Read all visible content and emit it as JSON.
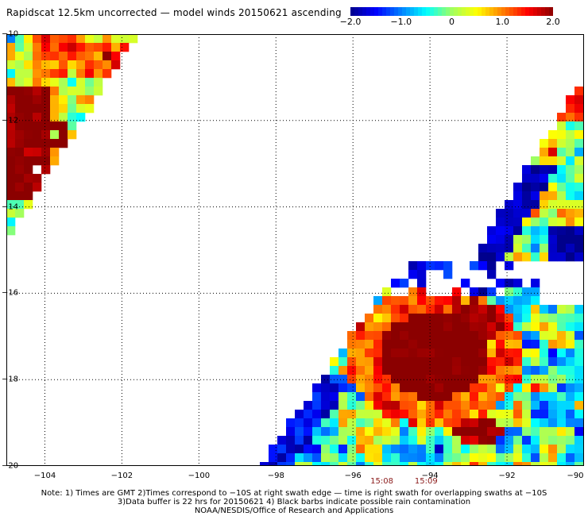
{
  "title": "Rapidscat 12.5km uncorrected — model winds 20150621 ascending",
  "colorbar": {
    "min": -2.0,
    "max": 2.0,
    "labels": [
      "−2.0",
      "−1.0",
      "0",
      "1.0",
      "2.0"
    ],
    "label_values": [
      -2.0,
      -1.0,
      0,
      1.0,
      2.0
    ],
    "colors": [
      "#00008b",
      "#0000ff",
      "#0080ff",
      "#00ffff",
      "#a0ff60",
      "#ffff00",
      "#ff8000",
      "#ff0000",
      "#8b0000"
    ]
  },
  "map": {
    "lon_range": [
      -105,
      -90
    ],
    "lat_range": [
      -20,
      -10
    ],
    "lon_ticks": [
      -104,
      -102,
      -100,
      -98,
      -96,
      -94,
      -92,
      -90
    ],
    "lon_tick_labels": [
      "−104",
      "−102",
      "−100",
      "−98",
      "−96",
      "−94",
      "−92",
      "−90"
    ],
    "lat_ticks": [
      -10,
      -12,
      -14,
      -16,
      -18,
      -20
    ],
    "lat_tick_labels": [
      "−10",
      "−12",
      "−14",
      "−16",
      "−18",
      "−20"
    ],
    "grid": "dotted",
    "time_labels": [
      {
        "text": "15:08",
        "lon": -95.25
      },
      {
        "text": "15:09",
        "lon": -94.1
      }
    ]
  },
  "notes": [
    "Note: 1) Times are GMT 2)Times correspond to −10S at right swath edge — time is right swath for overlapping swaths at −10S",
    "3)Data buffer is 22 hrs for 20150621 4) Black barbs indicate possible rain contamination",
    "NOAA/NESDIS/Office of Research and Applications"
  ]
}
